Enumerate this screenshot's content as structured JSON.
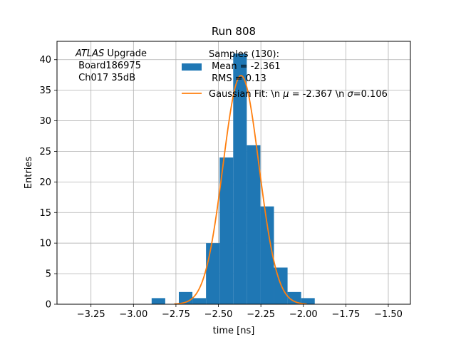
{
  "chart_data": {
    "type": "bar",
    "title": "Run 808",
    "xlabel": "time [ns]",
    "ylabel": "Entries",
    "xlim": [
      -3.45,
      -1.37
    ],
    "ylim": [
      0,
      43
    ],
    "grid": true,
    "xticks": [
      -3.25,
      -3.0,
      -2.75,
      -2.5,
      -2.25,
      -2.0,
      -1.75,
      -1.5
    ],
    "xtick_labels": [
      "−3.25",
      "−3.00",
      "−2.75",
      "−2.50",
      "−2.25",
      "−2.00",
      "−1.75",
      "−1.50"
    ],
    "yticks": [
      0,
      5,
      10,
      15,
      20,
      25,
      30,
      35,
      40
    ],
    "ytick_labels": [
      "0",
      "5",
      "10",
      "15",
      "20",
      "25",
      "30",
      "35",
      "40"
    ],
    "annotation": {
      "line1_italic": "ATLAS",
      "line1_rest": " Upgrade",
      "line2": " Board186975",
      "line3": " Ch017 35dB"
    },
    "histogram": {
      "name_lines": [
        "Samples (130):",
        " Mean = -2.361",
        " RMS = 0.13"
      ],
      "color": "#1f77b4",
      "bin_edges": [
        -2.893,
        -2.813,
        -2.733,
        -2.653,
        -2.573,
        -2.493,
        -2.413,
        -2.333,
        -2.253,
        -2.173,
        -2.093,
        -2.013,
        -1.933
      ],
      "counts": [
        1,
        0,
        2,
        1,
        10,
        24,
        41,
        26,
        16,
        6,
        2,
        1
      ]
    },
    "fit": {
      "name_prefix": "Gaussian Fit: \\n ",
      "mu_symbol": "μ",
      "name_middle": " = -2.367 \\n ",
      "sigma_symbol": "σ",
      "name_suffix": "=0.106",
      "color": "#ff7f0e",
      "mu": -2.367,
      "sigma": 0.106,
      "amplitude": 37.4,
      "x_range": [
        -2.76,
        -1.98
      ]
    },
    "legend_position": "upper-center"
  }
}
